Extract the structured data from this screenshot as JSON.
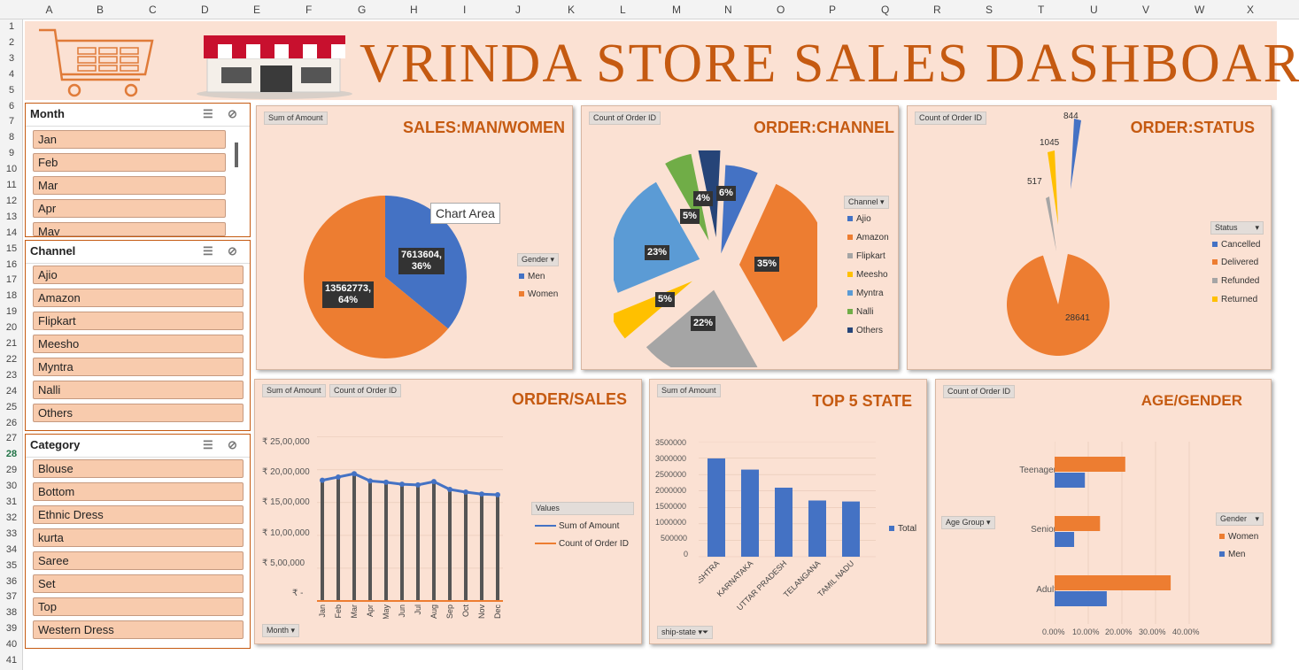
{
  "columns": [
    "A",
    "B",
    "C",
    "D",
    "E",
    "F",
    "G",
    "H",
    "I",
    "J",
    "K",
    "L",
    "M",
    "N",
    "O",
    "P",
    "Q",
    "R",
    "S",
    "T",
    "U",
    "V",
    "W",
    "X"
  ],
  "rows": [
    "1",
    "2",
    "3",
    "4",
    "5",
    "6",
    "7",
    "8",
    "9",
    "10",
    "11",
    "12",
    "13",
    "14",
    "15",
    "16",
    "17",
    "18",
    "19",
    "20",
    "21",
    "22",
    "23",
    "24",
    "25",
    "26",
    "27",
    "28",
    "29",
    "30",
    "31",
    "32",
    "33",
    "34",
    "35",
    "36",
    "37",
    "38",
    "39",
    "40",
    "41"
  ],
  "selected_row": "28",
  "dashboard": {
    "title": "VRINDA  STORE  SALES  DASHBOARD"
  },
  "slicers": {
    "month": {
      "title": "Month",
      "items": [
        "Jan",
        "Feb",
        "Mar",
        "Apr",
        "May"
      ]
    },
    "channel": {
      "title": "Channel",
      "items": [
        "Ajio",
        "Amazon",
        "Flipkart",
        "Meesho",
        "Myntra",
        "Nalli",
        "Others"
      ]
    },
    "category": {
      "title": "Category",
      "items": [
        "Blouse",
        "Bottom",
        "Ethnic Dress",
        "kurta",
        "Saree",
        "Set",
        "Top",
        "Western Dress"
      ]
    }
  },
  "charts": {
    "gender": {
      "title": "SALES:MAN/WOMEN",
      "field_button": "Sum of Amount",
      "legend_button": "Gender",
      "tooltip": "Chart Area",
      "labels": [
        "7613604,\n36%",
        "13562773,\n64%"
      ]
    },
    "channel": {
      "title": "ORDER:CHANNEL",
      "field_button": "Count of Order ID",
      "legend_button": "Channel",
      "labels": [
        "6%",
        "35%",
        "22%",
        "5%",
        "23%",
        "5%",
        "4%"
      ]
    },
    "status": {
      "title": "ORDER:STATUS",
      "field_button": "Count of Order ID",
      "legend_button": "Status",
      "labels": [
        "844",
        "1045",
        "517",
        "28641"
      ]
    },
    "ordersales": {
      "title": "ORDER/SALES",
      "field_buttons": [
        "Sum of Amount",
        "Count of Order ID"
      ],
      "axis_button": "Month",
      "legend_title": "Values",
      "y_ticks": [
        "₹ 25,00,000",
        "₹ 20,00,000",
        "₹ 15,00,000",
        "₹ 10,00,000",
        "₹ 5,00,000",
        "₹ -"
      ]
    },
    "state": {
      "title": "TOP 5 STATE",
      "field_button": "Sum of Amount",
      "axis_button": "ship-state",
      "y_ticks": [
        "3500000",
        "3000000",
        "2500000",
        "2000000",
        "1500000",
        "1000000",
        "500000",
        "0"
      ]
    },
    "age": {
      "title": "AGE/GENDER",
      "field_button": "Count of Order ID",
      "axis_button": "Age Group",
      "legend_button": "Gender",
      "x_ticks": [
        "0.00%",
        "10.00%",
        "20.00%",
        "30.00%",
        "40.00%"
      ]
    }
  },
  "chart_data": [
    {
      "type": "pie",
      "title": "SALES:MAN/WOMEN",
      "categories": [
        "Men",
        "Women"
      ],
      "values": [
        7613604,
        13562773
      ],
      "colors": [
        "#4472c4",
        "#ed7d31"
      ]
    },
    {
      "type": "pie",
      "title": "ORDER:CHANNEL",
      "categories": [
        "Ajio",
        "Amazon",
        "Flipkart",
        "Meesho",
        "Myntra",
        "Nalli",
        "Others"
      ],
      "values": [
        6,
        35,
        22,
        5,
        23,
        5,
        4
      ],
      "colors": [
        "#4472c4",
        "#ed7d31",
        "#a5a5a5",
        "#ffc000",
        "#5b9bd5",
        "#70ad47",
        "#264478"
      ]
    },
    {
      "type": "pie",
      "title": "ORDER:STATUS",
      "categories": [
        "Cancelled",
        "Delivered",
        "Refunded",
        "Returned"
      ],
      "values": [
        844,
        28641,
        517,
        1045
      ],
      "colors": [
        "#4472c4",
        "#ed7d31",
        "#a5a5a5",
        "#ffc000"
      ]
    },
    {
      "type": "line",
      "title": "ORDER/SALES",
      "categories": [
        "Jan",
        "Feb",
        "Mar",
        "Apr",
        "May",
        "Jun",
        "Jul",
        "Aug",
        "Sep",
        "Oct",
        "Nov",
        "Dec"
      ],
      "ylim": [
        0,
        2500000
      ],
      "series": [
        {
          "name": "Sum of Amount",
          "values": [
            1840000,
            1890000,
            1940000,
            1830000,
            1810000,
            1780000,
            1770000,
            1820000,
            1700000,
            1660000,
            1630000,
            1620000
          ],
          "color": "#4472c4"
        },
        {
          "name": "Count of Order ID",
          "values": [
            2450,
            2500,
            2580,
            2430,
            2400,
            2360,
            2350,
            2420,
            2260,
            2210,
            2170,
            2150
          ],
          "color": "#ed7d31"
        }
      ]
    },
    {
      "type": "bar",
      "title": "TOP 5 STATE",
      "categories": [
        "MAHARASHTRA",
        "KARNATAKA",
        "UTTAR PRADESH",
        "TELANGANA",
        "TAMIL NADU"
      ],
      "ylim": [
        0,
        3500000
      ],
      "series": [
        {
          "name": "Total",
          "values": [
            2990000,
            2650000,
            2100000,
            1710000,
            1680000
          ],
          "color": "#4472c4"
        }
      ]
    },
    {
      "type": "bar",
      "title": "AGE/GENDER",
      "categories": [
        "Teenager",
        "Senior",
        "Adult"
      ],
      "xlim": [
        0,
        0.4
      ],
      "series": [
        {
          "name": "Women",
          "values": [
            0.21,
            0.135,
            0.345
          ],
          "color": "#ed7d31"
        },
        {
          "name": "Men",
          "values": [
            0.09,
            0.058,
            0.155
          ],
          "color": "#4472c4"
        }
      ]
    }
  ]
}
